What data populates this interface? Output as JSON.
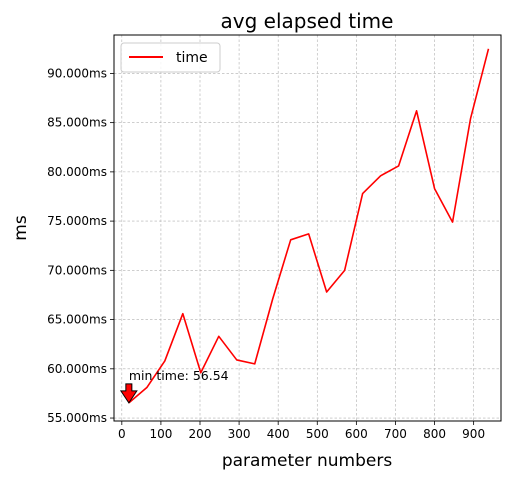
{
  "chart_data": {
    "type": "line",
    "title": "avg elapsed time",
    "xlabel": "parameter numbers",
    "ylabel": "ms",
    "xlim": [
      -20,
      970
    ],
    "ylim": [
      54.7,
      93.9
    ],
    "xticks": [
      0,
      100,
      200,
      300,
      400,
      500,
      600,
      700,
      800,
      900
    ],
    "xtick_labels": [
      "0",
      "100",
      "200",
      "300",
      "400",
      "500",
      "600",
      "700",
      "800",
      "900"
    ],
    "yticks": [
      55,
      60,
      65,
      70,
      75,
      80,
      85,
      90
    ],
    "ytick_labels": [
      "55.000ms",
      "60.000ms",
      "65.000ms",
      "70.000ms",
      "75.000ms",
      "80.000ms",
      "85.000ms",
      "90.000ms"
    ],
    "grid": true,
    "legend_position": "top-left",
    "series": [
      {
        "name": "time",
        "color": "#ff0000",
        "x": [
          18,
          64,
          110,
          156,
          202,
          248,
          294,
          340,
          386,
          432,
          478,
          524,
          570,
          616,
          662,
          708,
          754,
          800,
          846,
          892,
          938
        ],
        "y": [
          56.54,
          58.1,
          60.8,
          65.6,
          59.6,
          63.3,
          60.9,
          60.5,
          67.1,
          73.1,
          73.7,
          67.8,
          70.0,
          77.8,
          79.6,
          80.6,
          86.2,
          78.3,
          74.9,
          85.4,
          92.5
        ]
      }
    ],
    "annotation": {
      "text": "min time: 56.54",
      "x": 18,
      "y": 56.54,
      "arrow_color": "#ff0000"
    }
  }
}
